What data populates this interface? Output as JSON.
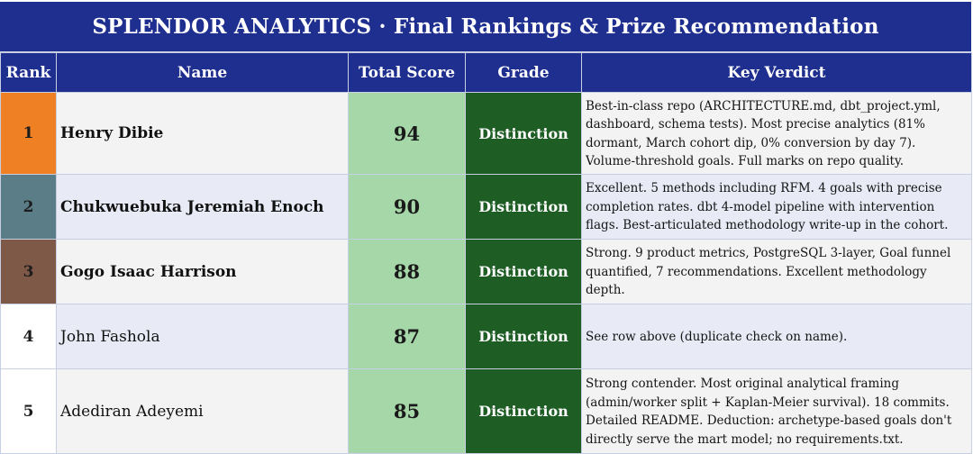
{
  "header": {
    "title": "SPLENDOR ANALYTICS  ·  Final Rankings & Prize Recommendation"
  },
  "columns": {
    "rank": "Rank",
    "name": "Name",
    "total_score": "Total Score",
    "grade": "Grade",
    "key_verdict": "Key Verdict"
  },
  "colors": {
    "header_bg": "#1f2f8f",
    "score_bg": "#a6d7a8",
    "grade_bg": "#1e5e25",
    "rank_1": "#f08024",
    "rank_2": "#5b7d88",
    "rank_3": "#7e5948"
  },
  "rows": [
    {
      "rank": "1",
      "name": "Henry Dibie",
      "score": "94",
      "grade": "Distinction",
      "verdict": "Best-in-class repo (ARCHITECTURE.md, dbt_project.yml, dashboard, schema tests). Most precise analytics (81% dormant, March cohort dip, 0% conversion by day 7). Volume-threshold goals. Full marks on repo quality."
    },
    {
      "rank": "2",
      "name": "Chukwuebuka Jeremiah Enoch",
      "score": "90",
      "grade": "Distinction",
      "verdict": "Excellent. 5 methods including RFM. 4 goals with precise completion rates. dbt 4-model pipeline with intervention flags. Best-articulated methodology write-up in the cohort."
    },
    {
      "rank": "3",
      "name": "Gogo Isaac Harrison",
      "score": "88",
      "grade": "Distinction",
      "verdict": "Strong. 9 product metrics, PostgreSQL 3-layer, Goal funnel quantified, 7 recommendations. Excellent methodology depth."
    },
    {
      "rank": "4",
      "name": "John Fashola",
      "score": "87",
      "grade": "Distinction",
      "verdict": "See row above (duplicate check on name)."
    },
    {
      "rank": "5",
      "name": "Adediran Adeyemi",
      "score": "85",
      "grade": "Distinction",
      "verdict": "Strong contender. Most original analytical framing (admin/worker split + Kaplan-Meier survival). 18 commits. Detailed README. Deduction: archetype-based goals don't directly serve the mart model; no requirements.txt."
    }
  ]
}
